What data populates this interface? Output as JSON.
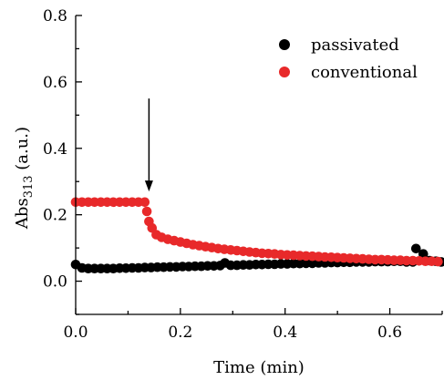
{
  "chart_data": {
    "type": "scatter",
    "xlabel": "Time (min)",
    "ylabel": {
      "main": "Abs",
      "sub": "313",
      "unit": " (a.u.)"
    },
    "xlim": [
      0,
      0.7
    ],
    "ylim": [
      -0.1,
      0.8
    ],
    "xticks": [
      0.0,
      0.2,
      0.4,
      0.6
    ],
    "xtick_labels": [
      "0.0",
      "0.2",
      "0.4",
      "0.6"
    ],
    "yticks": [
      0.0,
      0.2,
      0.4,
      0.6,
      0.8
    ],
    "ytick_labels": [
      "0.0",
      "0.2",
      "0.4",
      "0.6",
      "0.8"
    ],
    "legend_position": "top-right",
    "grid": false,
    "annotations": [
      {
        "type": "arrow",
        "x": 0.14,
        "y_from": 0.55,
        "y_to": 0.27
      }
    ],
    "series": [
      {
        "name": "passivated",
        "color": "#000000",
        "x": [
          0.0,
          0.012,
          0.024,
          0.036,
          0.048,
          0.06,
          0.072,
          0.084,
          0.096,
          0.108,
          0.12,
          0.132,
          0.144,
          0.156,
          0.168,
          0.18,
          0.192,
          0.204,
          0.216,
          0.228,
          0.24,
          0.252,
          0.264,
          0.276,
          0.285,
          0.296,
          0.308,
          0.32,
          0.332,
          0.344,
          0.356,
          0.368,
          0.38,
          0.392,
          0.404,
          0.416,
          0.428,
          0.44,
          0.452,
          0.464,
          0.476,
          0.488,
          0.5,
          0.512,
          0.524,
          0.536,
          0.548,
          0.56,
          0.572,
          0.584,
          0.596,
          0.608,
          0.62,
          0.632,
          0.644,
          0.65,
          0.664,
          0.676,
          0.688,
          0.698
        ],
        "y": [
          0.05,
          0.04,
          0.038,
          0.038,
          0.038,
          0.038,
          0.038,
          0.039,
          0.039,
          0.04,
          0.04,
          0.041,
          0.041,
          0.042,
          0.042,
          0.043,
          0.043,
          0.044,
          0.044,
          0.045,
          0.045,
          0.046,
          0.046,
          0.047,
          0.055,
          0.048,
          0.048,
          0.049,
          0.049,
          0.05,
          0.05,
          0.051,
          0.051,
          0.052,
          0.052,
          0.053,
          0.053,
          0.054,
          0.054,
          0.055,
          0.055,
          0.056,
          0.056,
          0.057,
          0.057,
          0.058,
          0.058,
          0.058,
          0.059,
          0.059,
          0.059,
          0.06,
          0.06,
          0.058,
          0.058,
          0.098,
          0.082,
          0.062,
          0.06,
          0.058
        ]
      },
      {
        "name": "conventional",
        "color": "#e8292a",
        "x": [
          0.0,
          0.012,
          0.024,
          0.036,
          0.048,
          0.06,
          0.072,
          0.084,
          0.096,
          0.108,
          0.12,
          0.132,
          0.136,
          0.14,
          0.146,
          0.154,
          0.164,
          0.176,
          0.188,
          0.2,
          0.212,
          0.224,
          0.236,
          0.248,
          0.26,
          0.272,
          0.284,
          0.296,
          0.308,
          0.32,
          0.332,
          0.344,
          0.356,
          0.368,
          0.38,
          0.392,
          0.404,
          0.416,
          0.428,
          0.44,
          0.452,
          0.464,
          0.476,
          0.488,
          0.5,
          0.512,
          0.524,
          0.536,
          0.548,
          0.56,
          0.572,
          0.584,
          0.596,
          0.608,
          0.62,
          0.632,
          0.644,
          0.656,
          0.668,
          0.68,
          0.692
        ],
        "y": [
          0.238,
          0.238,
          0.238,
          0.238,
          0.238,
          0.238,
          0.238,
          0.238,
          0.238,
          0.238,
          0.238,
          0.238,
          0.21,
          0.18,
          0.16,
          0.14,
          0.132,
          0.126,
          0.122,
          0.118,
          0.114,
          0.11,
          0.107,
          0.104,
          0.101,
          0.098,
          0.096,
          0.094,
          0.092,
          0.09,
          0.088,
          0.086,
          0.084,
          0.083,
          0.082,
          0.08,
          0.079,
          0.078,
          0.077,
          0.076,
          0.075,
          0.074,
          0.073,
          0.072,
          0.071,
          0.07,
          0.069,
          0.068,
          0.067,
          0.066,
          0.065,
          0.065,
          0.064,
          0.063,
          0.063,
          0.062,
          0.062,
          0.061,
          0.06,
          0.06,
          0.059
        ]
      }
    ]
  }
}
